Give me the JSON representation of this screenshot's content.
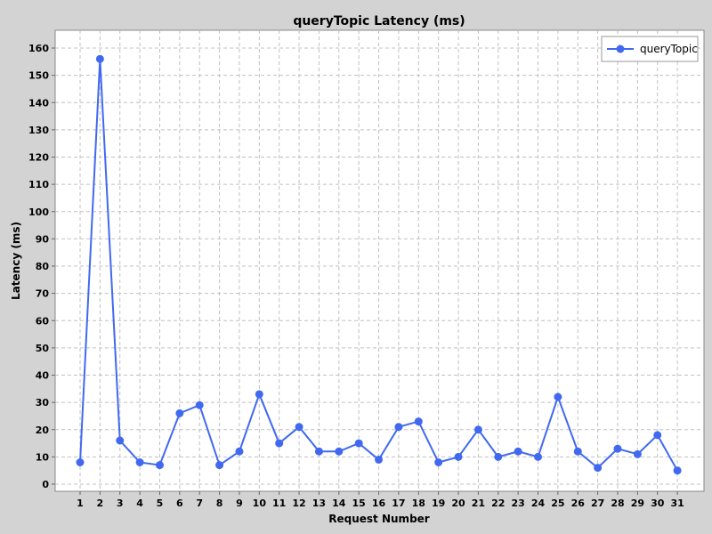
{
  "chart_data": {
    "type": "line",
    "title": "queryTopic Latency (ms)",
    "xlabel": "Request Number",
    "ylabel": "Latency (ms)",
    "ylim": [
      0,
      160
    ],
    "yticks": [
      0,
      10,
      20,
      30,
      40,
      50,
      60,
      70,
      80,
      90,
      100,
      110,
      120,
      130,
      140,
      150,
      160
    ],
    "categories": [
      "1",
      "2",
      "3",
      "4",
      "5",
      "6",
      "7",
      "8",
      "9",
      "10",
      "11",
      "12",
      "13",
      "14",
      "15",
      "16",
      "17",
      "18",
      "19",
      "20",
      "21",
      "22",
      "23",
      "24",
      "25",
      "26",
      "27",
      "28",
      "29",
      "30",
      "31"
    ],
    "series": [
      {
        "name": "queryTopic",
        "color": "#4169f0",
        "values": [
          8,
          156,
          16,
          8,
          7,
          26,
          29,
          7,
          12,
          33,
          15,
          21,
          12,
          12,
          15,
          9,
          21,
          23,
          8,
          10,
          20,
          10,
          12,
          10,
          32,
          12,
          6,
          13,
          11,
          18,
          5
        ]
      }
    ],
    "grid": true,
    "legend_position": "top-right"
  }
}
